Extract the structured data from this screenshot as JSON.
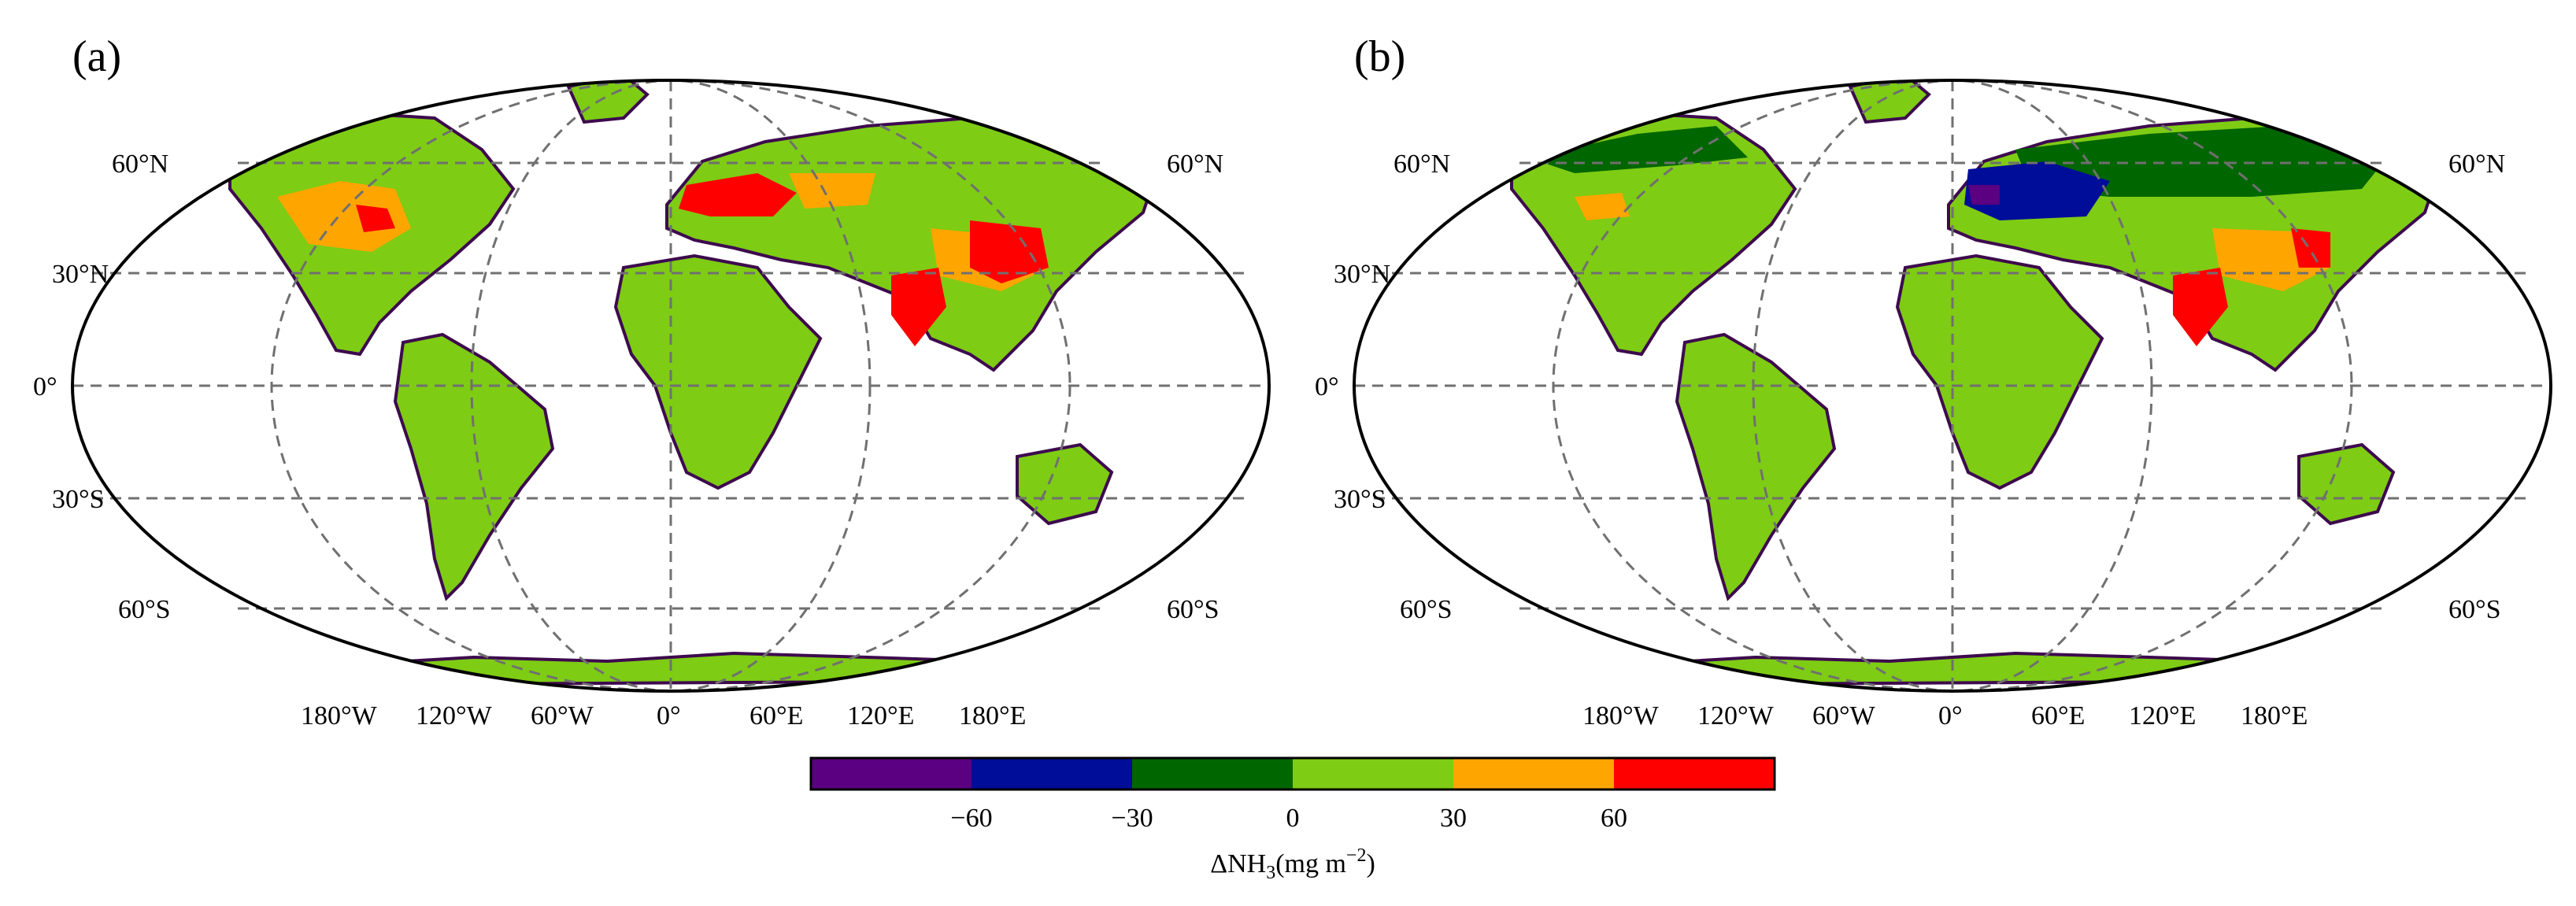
{
  "panels": [
    {
      "id": "a",
      "label": "(a)",
      "lat_labels": [
        "60°N",
        "30°N",
        "0°",
        "30°S",
        "60°S"
      ],
      "lat_values": [
        60,
        30,
        0,
        -30,
        -60
      ],
      "lon_labels": [
        "180°W",
        "120°W",
        "60°W",
        "0°",
        "60°E",
        "120°E",
        "180°E"
      ]
    },
    {
      "id": "b",
      "label": "(b)",
      "lat_labels": [
        "60°N",
        "30°N",
        "0°",
        "30°S",
        "60°S"
      ],
      "lat_values": [
        60,
        30,
        0,
        -30,
        -60
      ],
      "lon_labels": [
        "180°W",
        "120°W",
        "60°W",
        "0°",
        "60°E",
        "120°E",
        "180°E"
      ]
    }
  ],
  "colorbar": {
    "colors": [
      "#5b0080",
      "#000d99",
      "#006600",
      "#7ecc14",
      "#ffa500",
      "#ff0000"
    ],
    "tick_labels": [
      "−60",
      "−30",
      "0",
      "30",
      "60"
    ],
    "label_prefix": "ΔNH",
    "label_sub": "3",
    "label_suffix": "(mg m",
    "label_sup": "−2",
    "label_end": ")"
  },
  "colors": {
    "land": "#7ecc14",
    "ocean": "#ffffff",
    "coast": "#3d0a4e",
    "grid": "#707070"
  }
}
